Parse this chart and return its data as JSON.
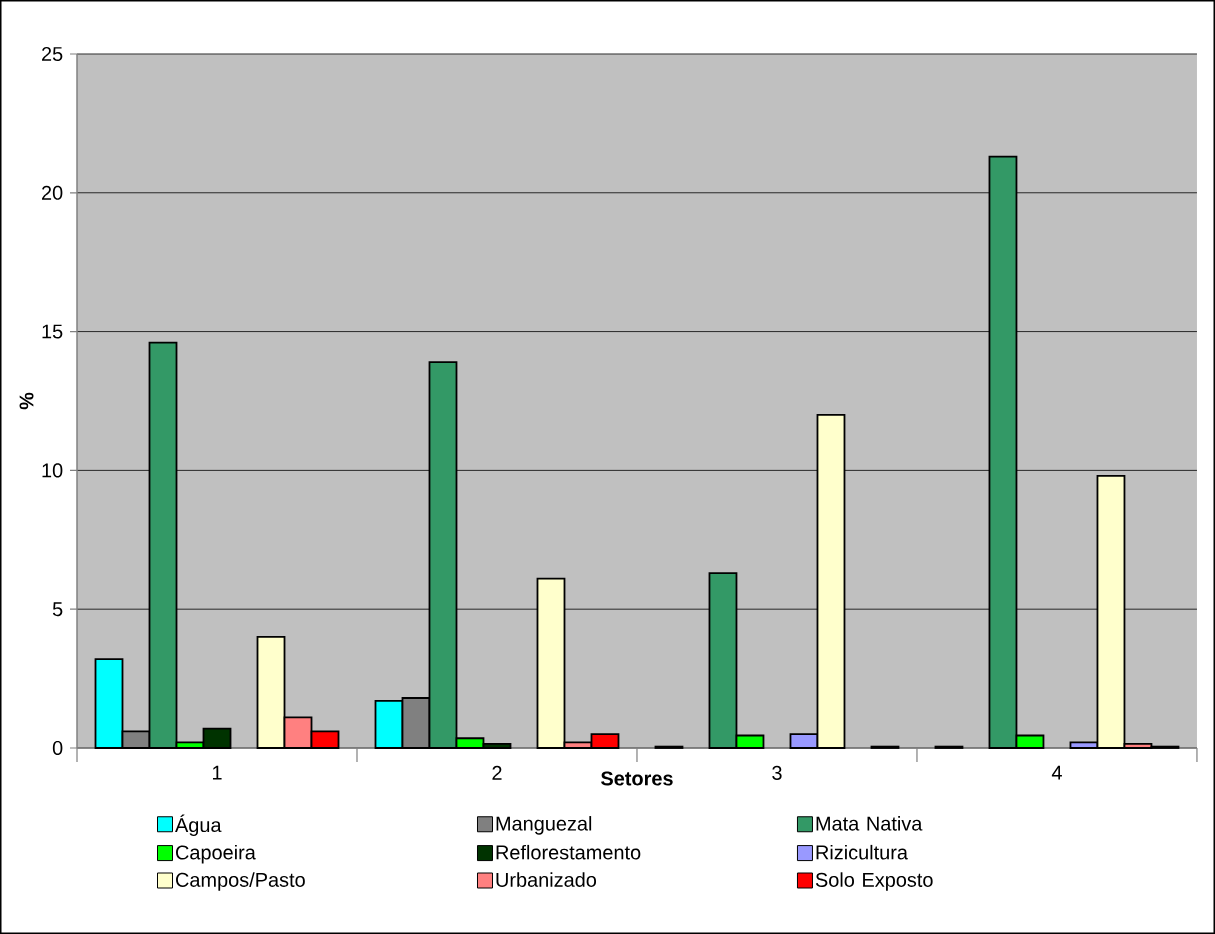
{
  "chart_data": {
    "type": "bar",
    "xlabel": "Setores",
    "ylabel": "%",
    "categories": [
      "1",
      "2",
      "3",
      "4"
    ],
    "series": [
      {
        "name": "Água",
        "color": "#00ffff",
        "values": [
          3.2,
          1.7,
          0.05,
          0.05
        ]
      },
      {
        "name": "Manguezal",
        "color": "#808080",
        "values": [
          0.6,
          1.8,
          null,
          null
        ]
      },
      {
        "name": "Mata Nativa",
        "color": "#339966",
        "values": [
          14.6,
          13.9,
          6.3,
          21.3
        ]
      },
      {
        "name": "Capoeira",
        "color": "#00ff00",
        "values": [
          0.2,
          0.35,
          0.45,
          0.45
        ]
      },
      {
        "name": "Reflorestamento",
        "color": "#003300",
        "values": [
          0.7,
          0.15,
          null,
          null
        ]
      },
      {
        "name": "Rizicultura",
        "color": "#9999ff",
        "values": [
          null,
          null,
          0.5,
          0.2
        ]
      },
      {
        "name": "Campos/Pasto",
        "color": "#ffffcc",
        "values": [
          4.0,
          6.1,
          12.0,
          9.8
        ]
      },
      {
        "name": "Urbanizado",
        "color": "#ff8080",
        "values": [
          1.1,
          0.2,
          null,
          0.15
        ]
      },
      {
        "name": "Solo Exposto",
        "color": "#ff0000",
        "values": [
          0.6,
          0.5,
          0.05,
          0.05
        ]
      }
    ],
    "ylim": [
      0,
      25
    ],
    "yticks": [
      0,
      5,
      10,
      15,
      20,
      25
    ],
    "grid": "y",
    "legend": "bottom"
  }
}
